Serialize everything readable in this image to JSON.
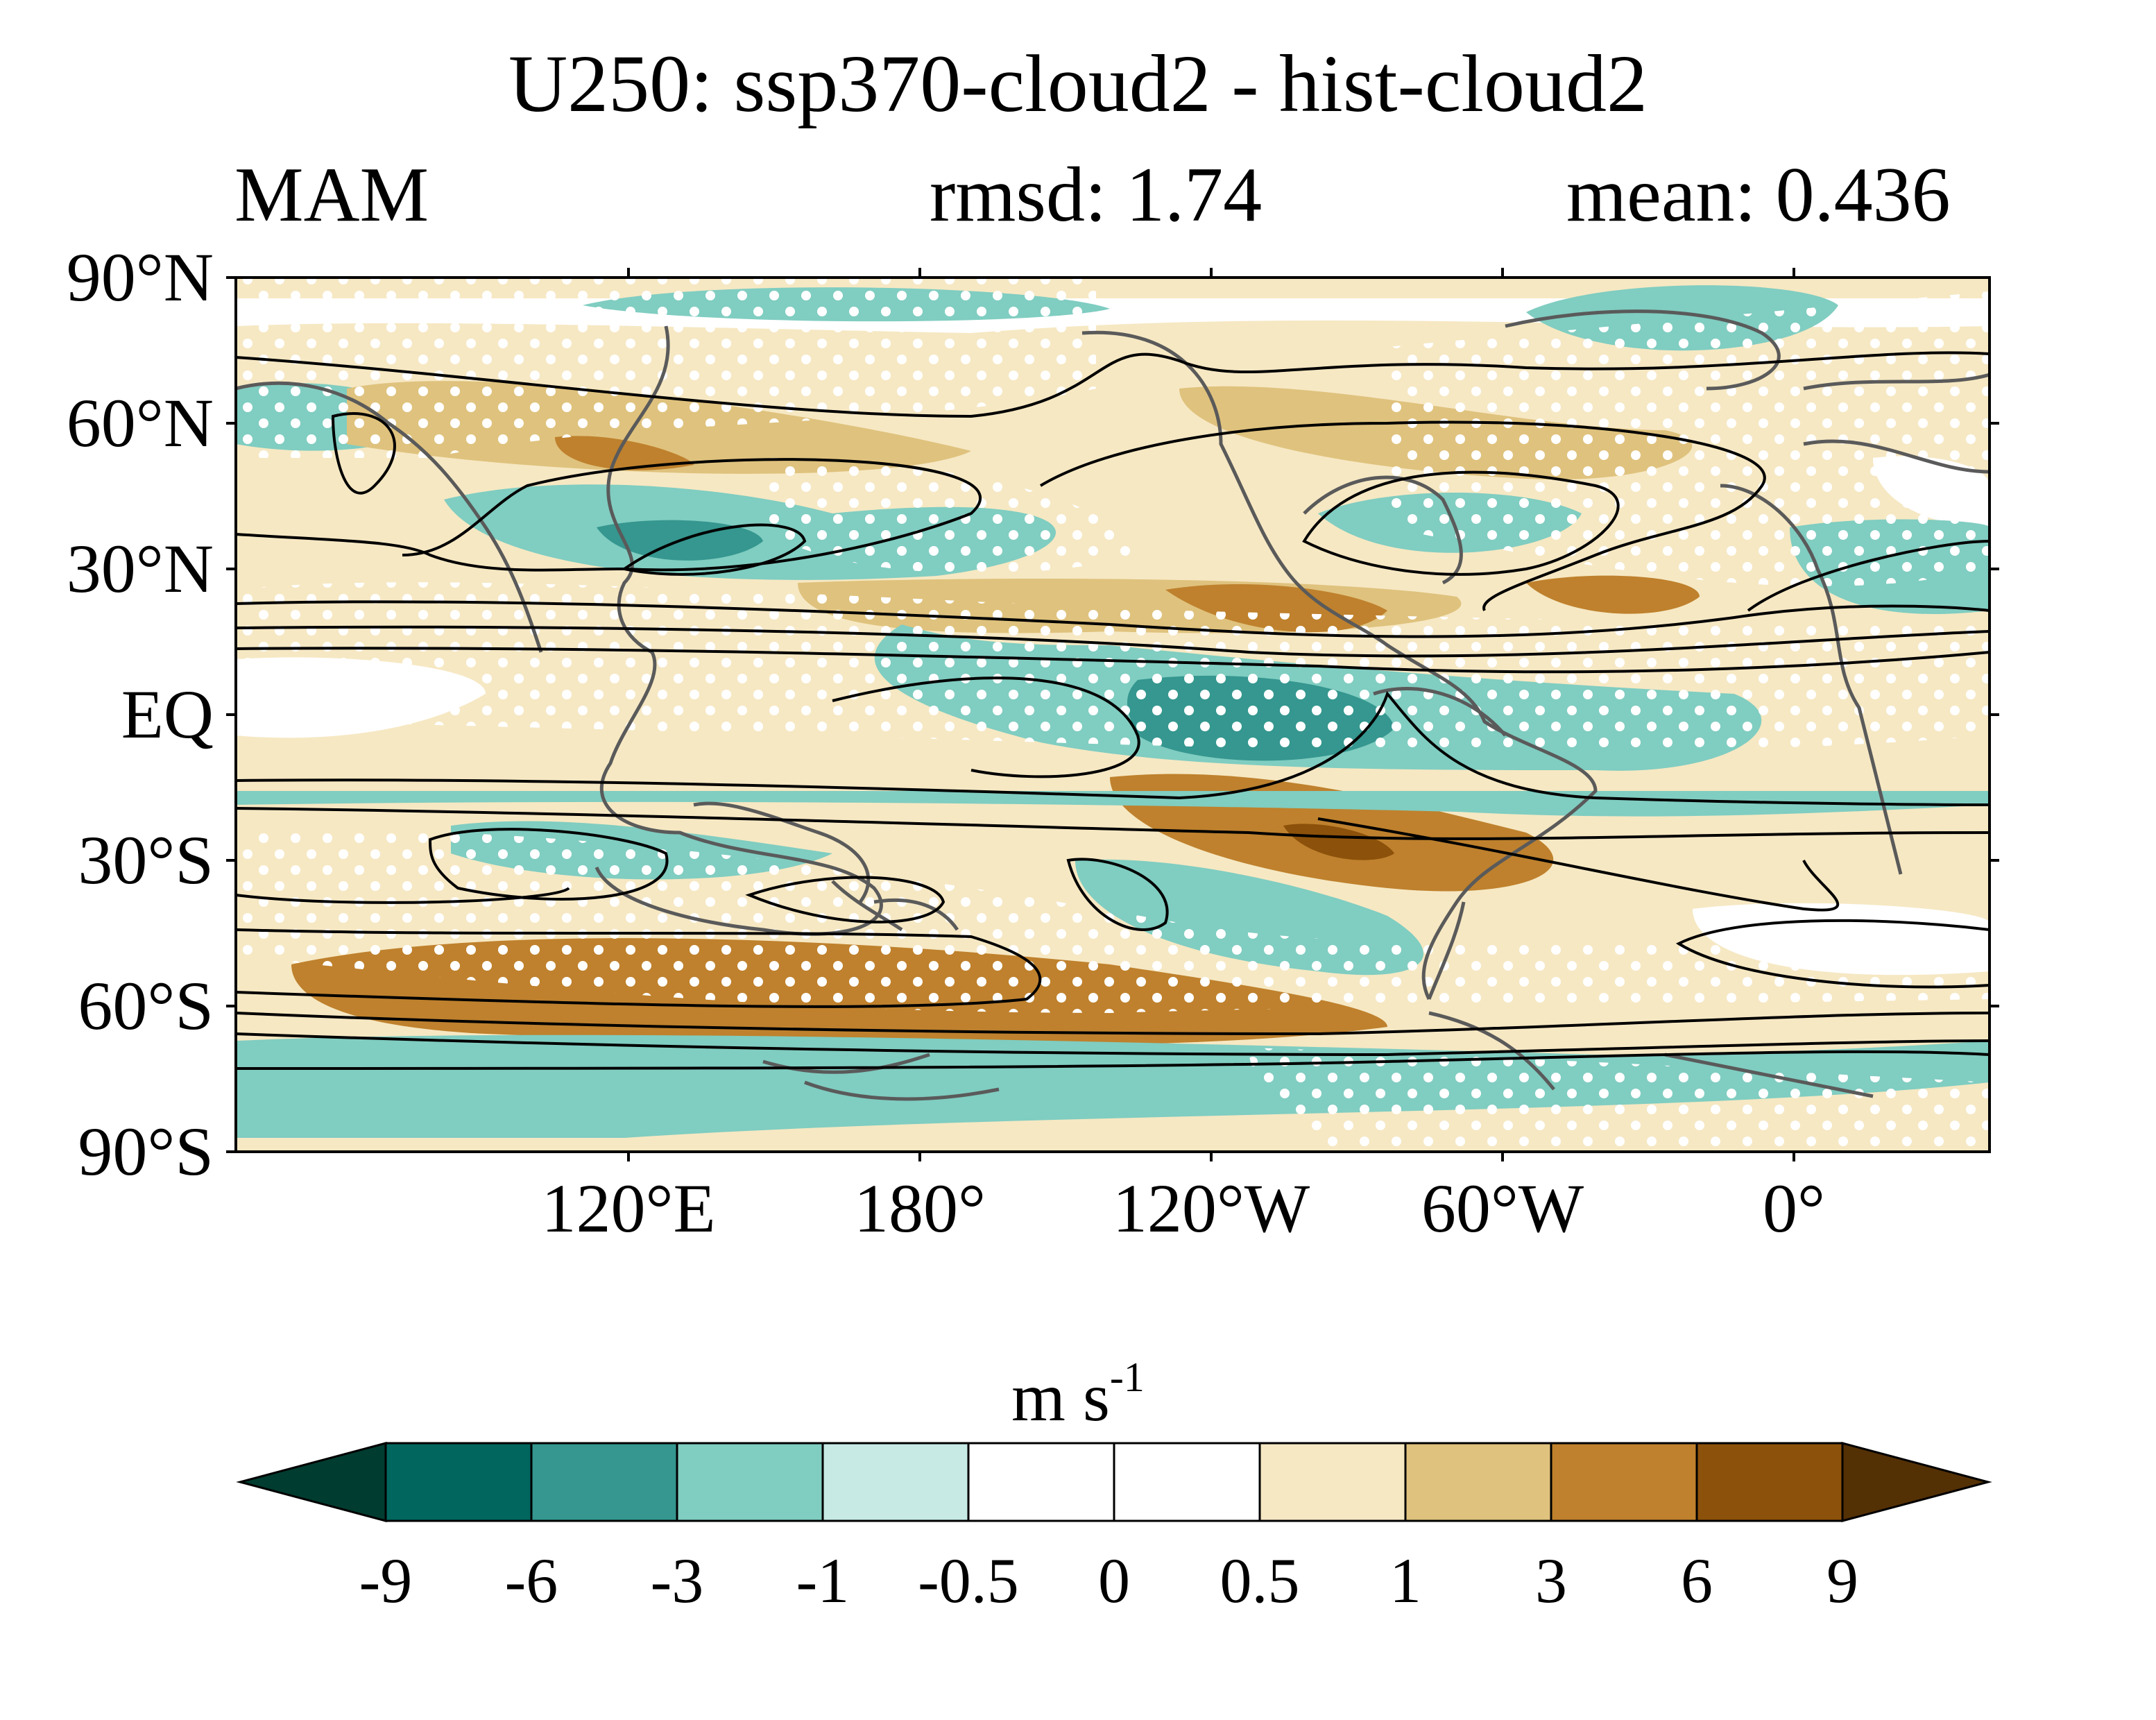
{
  "title": "U250: ssp370-cloud2 - hist-cloud2",
  "season": "MAM",
  "rmsd_label": "rmsd: 1.74",
  "mean_label": "mean: 0.436",
  "units_base": "m s",
  "units_exp": "-1",
  "lat_labels": [
    "90°N",
    "60°N",
    "30°N",
    "EQ",
    "30°S",
    "60°S",
    "90°S"
  ],
  "lon_labels": [
    "120°E",
    "180°",
    "120°W",
    "60°W",
    "0°"
  ],
  "colorbar": {
    "tick_labels": [
      "-9",
      "-6",
      "-3",
      "-1",
      "-0.5",
      "0",
      "0.5",
      "1",
      "3",
      "6",
      "9"
    ],
    "colors": [
      "#003c30",
      "#01665e",
      "#35978f",
      "#80cdc1",
      "#c7eae5",
      "#ffffff",
      "#ffffff",
      "#f6e8c3",
      "#dfc27d",
      "#bf812d",
      "#8c510a",
      "#543005"
    ]
  },
  "map_colors": {
    "coast": "#5a5a5a",
    "contour": "#000000",
    "stipple": "#ffffff"
  }
}
